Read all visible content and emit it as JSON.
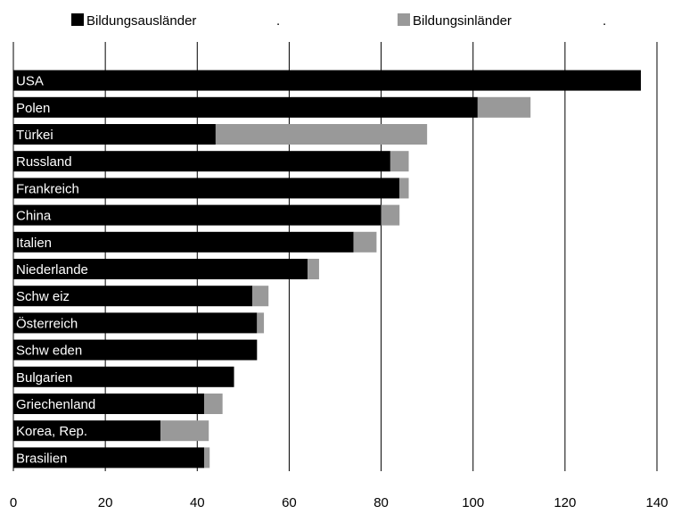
{
  "chart_data": {
    "type": "bar",
    "orientation": "horizontal",
    "stacked": true,
    "categories": [
      "USA",
      "Polen",
      "Türkei",
      "Russland",
      "Frankreich",
      "China",
      "Italien",
      "Niederlande",
      "Schw eiz",
      "Österreich",
      "Schw eden",
      "Bulgarien",
      "Griechenland",
      "Korea, Rep.",
      "Brasilien"
    ],
    "series": [
      {
        "name": "Bildungsausländer",
        "color": "#000000",
        "values": [
          136.5,
          101,
          44,
          82,
          84,
          80,
          74,
          64,
          52,
          53,
          53,
          48,
          41.5,
          32,
          41.5
        ]
      },
      {
        "name": "Bildungsinländer",
        "color": "#999999",
        "values": [
          0,
          11.5,
          46,
          4,
          2,
          4,
          5,
          2.5,
          3.5,
          1.5,
          0,
          0,
          4,
          10.5,
          1.2
        ]
      }
    ],
    "xlim": [
      0,
      140
    ],
    "xticks": [
      0,
      20,
      40,
      60,
      80,
      100,
      120,
      140
    ],
    "grid": "vertical",
    "legend": "top",
    "legend_suffix": "."
  }
}
